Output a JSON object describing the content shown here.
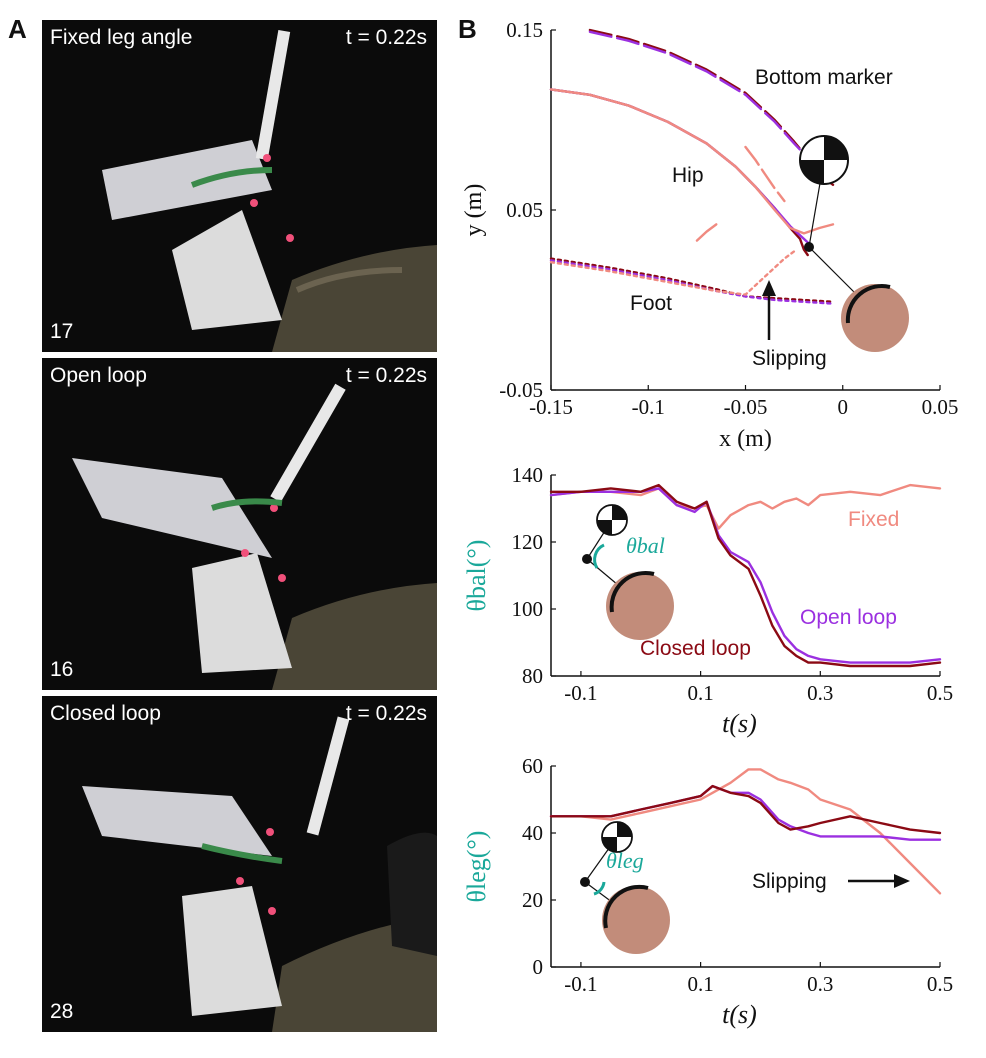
{
  "panels": {
    "a_label": "A",
    "b_label": "B"
  },
  "photos": [
    {
      "title": "Fixed leg angle",
      "time": "t = 0.22s",
      "number": "17"
    },
    {
      "title": "Open loop",
      "time": "t = 0.22s",
      "number": "16"
    },
    {
      "title": "Closed loop",
      "time": "t = 0.22s",
      "number": "28"
    }
  ],
  "colors": {
    "fixed": "#f08a80",
    "open_loop": "#9b30e0",
    "closed_loop": "#8b0a14",
    "teal": "#1aa89a",
    "branch": "#c28c7a"
  },
  "chart_data": [
    {
      "type": "line",
      "xlabel": "x (m)",
      "ylabel": "y (m)",
      "xlim": [
        -0.15,
        0.05
      ],
      "ylim": [
        -0.05,
        0.15
      ],
      "x_ticks": [
        "-0.15",
        "-0.1",
        "-0.05",
        "0",
        "0.05"
      ],
      "x_tick_values": [
        -0.15,
        -0.1,
        -0.05,
        0,
        0.05
      ],
      "y_ticks": [
        "-0.05",
        "0.05",
        "0.15"
      ],
      "y_tick_values": [
        -0.05,
        0.05,
        0.15
      ],
      "annotations": [
        "Bottom marker",
        "Hip",
        "Foot",
        "Slipping"
      ],
      "series": [
        {
          "group": "bottom",
          "color": "closed_loop",
          "x": [
            -0.13,
            -0.11,
            -0.09,
            -0.07,
            -0.05,
            -0.035,
            -0.025,
            -0.015,
            -0.01,
            -0.005
          ],
          "y": [
            0.15,
            0.145,
            0.138,
            0.128,
            0.115,
            0.1,
            0.088,
            0.075,
            0.068,
            0.064
          ]
        },
        {
          "group": "bottom",
          "color": "open_loop",
          "x": [
            -0.13,
            -0.11,
            -0.09,
            -0.07,
            -0.05,
            -0.035,
            -0.025,
            -0.018,
            -0.012,
            -0.008
          ],
          "y": [
            0.149,
            0.144,
            0.137,
            0.127,
            0.114,
            0.099,
            0.087,
            0.079,
            0.072,
            0.067
          ]
        },
        {
          "group": "bottom",
          "color": "fixed",
          "x": [
            -0.05,
            -0.045,
            -0.04,
            -0.035,
            -0.03
          ],
          "y": [
            0.085,
            0.078,
            0.07,
            0.062,
            0.055
          ]
        },
        {
          "group": "hip",
          "color": "closed_loop",
          "x": [
            -0.15,
            -0.13,
            -0.11,
            -0.09,
            -0.07,
            -0.055,
            -0.045,
            -0.035,
            -0.027,
            -0.022,
            -0.02,
            -0.018
          ],
          "y": [
            0.117,
            0.114,
            0.108,
            0.099,
            0.087,
            0.074,
            0.063,
            0.051,
            0.04,
            0.034,
            0.028,
            0.025
          ]
        },
        {
          "group": "hip",
          "color": "open_loop",
          "x": [
            -0.15,
            -0.13,
            -0.11,
            -0.09,
            -0.07,
            -0.055,
            -0.045,
            -0.035,
            -0.027,
            -0.022,
            -0.018,
            -0.016
          ],
          "y": [
            0.117,
            0.114,
            0.108,
            0.099,
            0.087,
            0.074,
            0.063,
            0.051,
            0.041,
            0.036,
            0.032,
            0.03
          ]
        },
        {
          "group": "hip",
          "color": "fixed",
          "x": [
            -0.15,
            -0.13,
            -0.11,
            -0.09,
            -0.07,
            -0.055,
            -0.045,
            -0.035,
            -0.027,
            -0.02,
            -0.012,
            -0.005
          ],
          "y": [
            0.117,
            0.114,
            0.108,
            0.099,
            0.087,
            0.074,
            0.063,
            0.05,
            0.04,
            0.037,
            0.04,
            0.042
          ]
        },
        {
          "group": "hip",
          "color": "fixed",
          "x": [
            -0.075,
            -0.07,
            -0.065
          ],
          "y": [
            0.033,
            0.038,
            0.042
          ]
        },
        {
          "group": "foot",
          "color": "closed_loop",
          "x": [
            -0.15,
            -0.12,
            -0.09,
            -0.065,
            -0.05,
            -0.035,
            -0.02,
            -0.005
          ],
          "y": [
            0.023,
            0.018,
            0.012,
            0.006,
            0.002,
            0.001,
            0.0,
            -0.001
          ]
        },
        {
          "group": "foot",
          "color": "open_loop",
          "x": [
            -0.15,
            -0.12,
            -0.09,
            -0.065,
            -0.05,
            -0.035,
            -0.02,
            -0.005
          ],
          "y": [
            0.022,
            0.017,
            0.011,
            0.005,
            0.002,
            0.0,
            -0.001,
            -0.002
          ]
        },
        {
          "group": "foot",
          "color": "fixed",
          "x": [
            -0.15,
            -0.12,
            -0.09,
            -0.065,
            -0.05,
            -0.045,
            -0.04,
            -0.035,
            -0.03,
            -0.025
          ],
          "y": [
            0.021,
            0.016,
            0.01,
            0.005,
            0.003,
            0.008,
            0.013,
            0.018,
            0.023,
            0.027
          ]
        }
      ]
    },
    {
      "type": "line",
      "xlabel": "t(s)",
      "ylabel": "θbal(°)",
      "xlim": [
        -0.15,
        0.5
      ],
      "ylim": [
        80,
        140
      ],
      "x_ticks": [
        "-0.1",
        "0.1",
        "0.3",
        "0.5"
      ],
      "x_tick_values": [
        -0.1,
        0.1,
        0.3,
        0.5
      ],
      "y_ticks": [
        "80",
        "100",
        "120",
        "140"
      ],
      "y_tick_values": [
        80,
        100,
        120,
        140
      ],
      "inset_label": "θbal",
      "x": [
        -0.15,
        -0.1,
        -0.05,
        0.0,
        0.03,
        0.06,
        0.09,
        0.11,
        0.13,
        0.15,
        0.18,
        0.2,
        0.22,
        0.24,
        0.26,
        0.28,
        0.3,
        0.35,
        0.4,
        0.45,
        0.5
      ],
      "series": [
        {
          "name": "Fixed",
          "color": "fixed",
          "values": [
            134,
            135,
            135,
            134,
            136,
            131,
            130,
            131,
            124,
            128,
            131,
            132,
            130,
            132,
            133,
            131,
            134,
            135,
            134,
            137,
            136
          ]
        },
        {
          "name": "Open loop",
          "color": "open_loop",
          "values": [
            134,
            135,
            135,
            135,
            136,
            131,
            129,
            132,
            122,
            117,
            114,
            108,
            99,
            92,
            88,
            86,
            85,
            84,
            84,
            84,
            85
          ]
        },
        {
          "name": "Closed loop",
          "color": "closed_loop",
          "values": [
            135,
            135,
            136,
            135,
            137,
            132,
            130,
            132,
            121,
            116,
            112,
            104,
            95,
            89,
            86,
            84,
            84,
            83,
            83,
            83,
            84
          ]
        }
      ]
    },
    {
      "type": "line",
      "xlabel": "t(s)",
      "ylabel": "θleg(°)",
      "xlim": [
        -0.15,
        0.5
      ],
      "ylim": [
        0,
        60
      ],
      "x_ticks": [
        "-0.1",
        "0.1",
        "0.3",
        "0.5"
      ],
      "x_tick_values": [
        -0.1,
        0.1,
        0.3,
        0.5
      ],
      "y_ticks": [
        "0",
        "20",
        "40",
        "60"
      ],
      "y_tick_values": [
        0,
        20,
        40,
        60
      ],
      "inset_label": "θleg",
      "annotations": [
        "Slipping"
      ],
      "x": [
        -0.15,
        -0.1,
        -0.05,
        0.0,
        0.05,
        0.1,
        0.12,
        0.15,
        0.18,
        0.2,
        0.23,
        0.25,
        0.28,
        0.3,
        0.35,
        0.4,
        0.45,
        0.5
      ],
      "series": [
        {
          "name": "Fixed",
          "color": "fixed",
          "values": [
            45,
            45,
            44,
            46,
            48,
            50,
            52,
            55,
            59,
            59,
            56,
            55,
            53,
            50,
            47,
            40,
            31,
            22
          ]
        },
        {
          "name": "Open loop",
          "color": "open_loop",
          "values": [
            45,
            45,
            45,
            47,
            49,
            51,
            54,
            52,
            52,
            50,
            44,
            42,
            40,
            39,
            39,
            39,
            38,
            38
          ]
        },
        {
          "name": "Closed loop",
          "color": "closed_loop",
          "values": [
            45,
            45,
            45,
            47,
            49,
            51,
            54,
            52,
            51,
            49,
            43,
            41,
            42,
            43,
            45,
            43,
            41,
            40
          ]
        }
      ]
    }
  ]
}
